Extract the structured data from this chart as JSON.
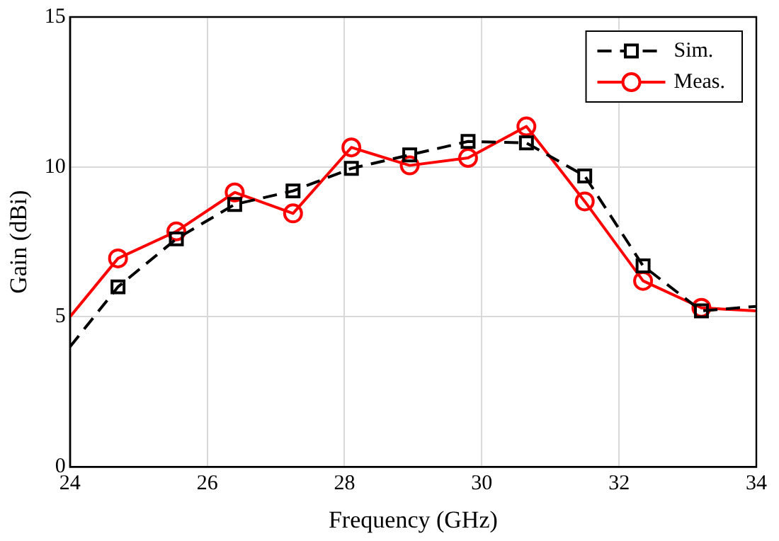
{
  "chart_data": {
    "type": "line",
    "xlabel": "Frequency (GHz)",
    "ylabel": "Gain (dBi)",
    "x": [
      24,
      24.7,
      25.55,
      26.4,
      27.25,
      28.1,
      28.95,
      29.8,
      30.65,
      31.5,
      32.35,
      33.2,
      34
    ],
    "series": [
      {
        "name": "Sim.",
        "color": "#000000",
        "marker": "square",
        "line_style": "dashed",
        "values": [
          4.0,
          6.0,
          7.6,
          8.75,
          9.2,
          9.95,
          10.4,
          10.85,
          10.8,
          9.7,
          6.7,
          5.2,
          5.35
        ]
      },
      {
        "name": "Meas.",
        "color": "#ff0000",
        "marker": "circle",
        "line_style": "solid",
        "values": [
          5.0,
          6.95,
          7.85,
          9.15,
          8.45,
          10.65,
          10.05,
          10.3,
          11.35,
          8.85,
          6.2,
          5.3,
          5.2
        ]
      }
    ],
    "xlim": [
      24,
      34
    ],
    "xticks": [
      24,
      26,
      28,
      30,
      32,
      34
    ],
    "ylim": [
      0,
      15
    ],
    "yticks": [
      0,
      5,
      10,
      15
    ],
    "grid": true,
    "legend": "top right"
  }
}
